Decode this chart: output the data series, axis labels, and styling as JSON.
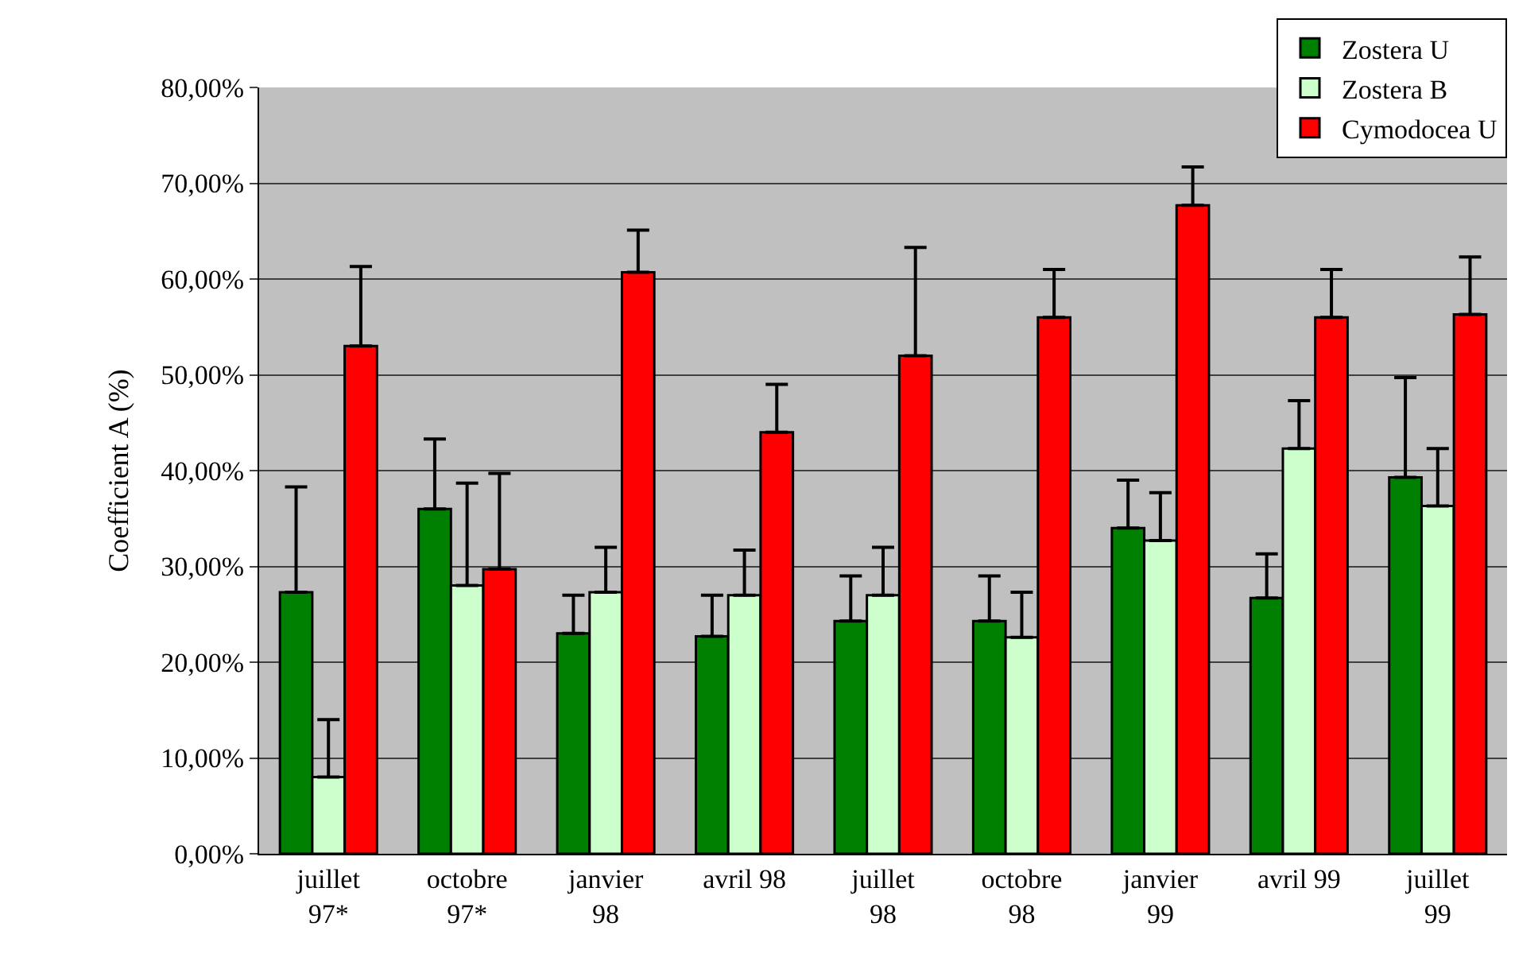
{
  "chart_data": {
    "type": "bar",
    "ylabel": "Coefficient A (%)",
    "categories": [
      "juillet\n97*",
      "octobre\n97*",
      "janvier\n98",
      "avril 98",
      "juillet\n98",
      "octobre\n98",
      "janvier\n99",
      "avril 99",
      "juillet\n99"
    ],
    "series": [
      {
        "name": "Zostera U",
        "color": "#008000",
        "values": [
          27.3,
          36.0,
          23.0,
          22.7,
          24.3,
          24.3,
          34.0,
          26.7,
          39.3
        ],
        "errors": [
          [
            27.3,
            38.3
          ],
          [
            36.0,
            43.3
          ],
          [
            23.0,
            27.0
          ],
          [
            22.7,
            27.0
          ],
          [
            24.3,
            29.0
          ],
          [
            24.3,
            29.0
          ],
          [
            34.0,
            39.0
          ],
          [
            26.7,
            31.3
          ],
          [
            39.3,
            49.7
          ]
        ]
      },
      {
        "name": "Zostera B",
        "color": "#ccffcc",
        "values": [
          8.0,
          28.0,
          27.3,
          27.0,
          27.0,
          22.6,
          32.7,
          42.3,
          36.3
        ],
        "errors": [
          [
            8.0,
            14.0
          ],
          [
            28.0,
            38.7
          ],
          [
            27.3,
            32.0
          ],
          [
            27.0,
            31.7
          ],
          [
            27.0,
            32.0
          ],
          [
            22.6,
            27.3
          ],
          [
            32.7,
            37.7
          ],
          [
            42.3,
            47.3
          ],
          [
            36.3,
            42.3
          ]
        ]
      },
      {
        "name": "Cymodocea U",
        "color": "#ff0000",
        "values": [
          53.0,
          29.7,
          60.7,
          44.0,
          52.0,
          56.0,
          67.7,
          56.0,
          56.3
        ],
        "errors": [
          [
            53.0,
            61.3
          ],
          [
            29.7,
            39.7
          ],
          [
            60.7,
            65.1
          ],
          [
            44.0,
            49.0
          ],
          [
            52.0,
            63.3
          ],
          [
            56.0,
            61.0
          ],
          [
            67.7,
            71.7
          ],
          [
            56.0,
            61.0
          ],
          [
            56.3,
            62.3
          ]
        ]
      }
    ],
    "ylim": [
      0,
      80
    ],
    "yticks": [
      {
        "value": 0,
        "label": "0,00%"
      },
      {
        "value": 10,
        "label": "10,00%"
      },
      {
        "value": 20,
        "label": "20,00%"
      },
      {
        "value": 30,
        "label": "30,00%"
      },
      {
        "value": 40,
        "label": "40,00%"
      },
      {
        "value": 50,
        "label": "50,00%"
      },
      {
        "value": 60,
        "label": "60,00%"
      },
      {
        "value": 70,
        "label": "70,00%"
      },
      {
        "value": 80,
        "label": "80,00%"
      }
    ],
    "grid": "y",
    "legend": "top right"
  }
}
